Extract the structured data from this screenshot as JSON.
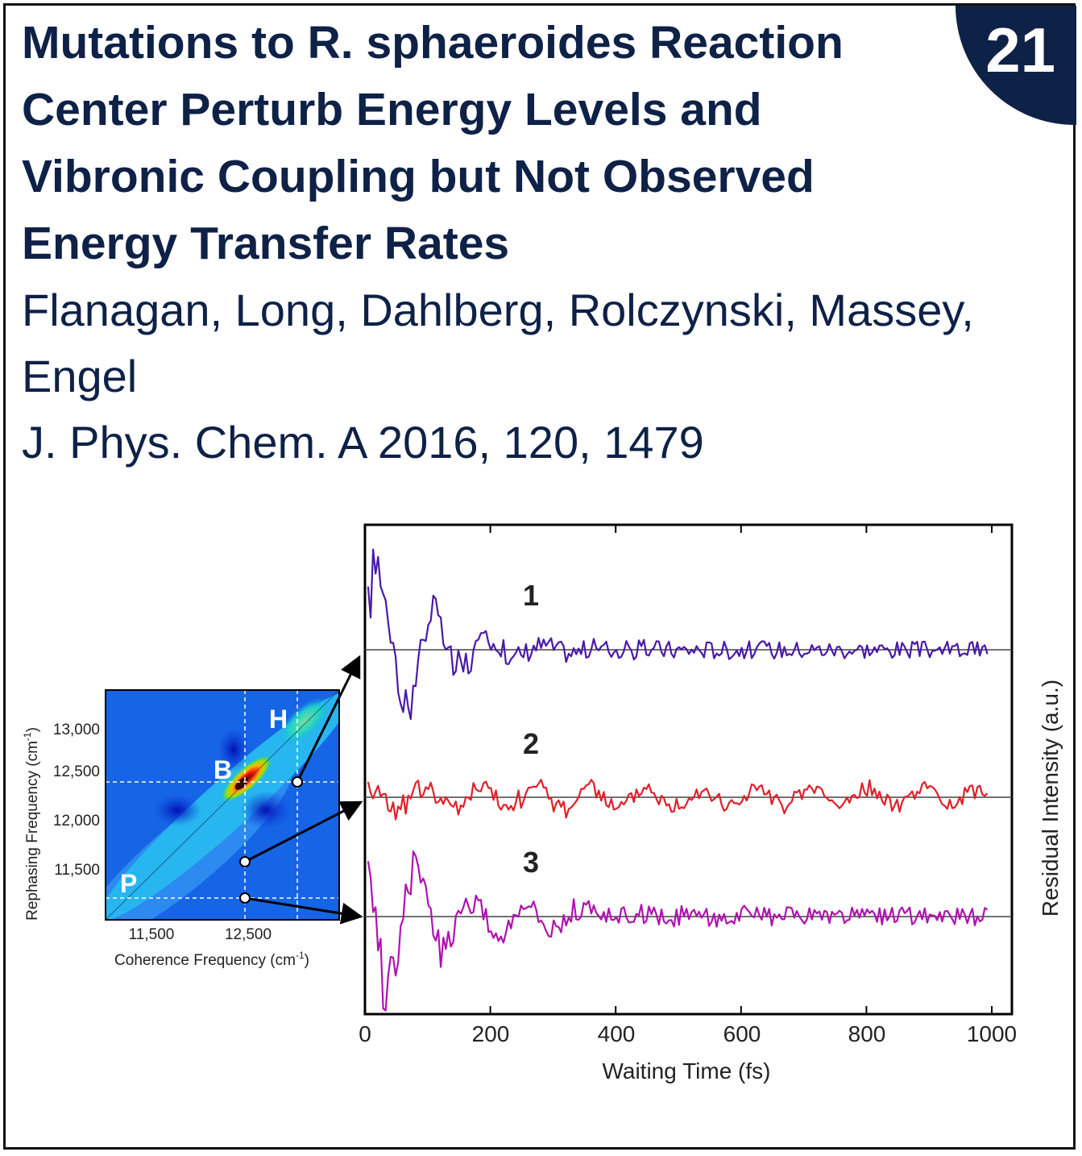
{
  "badge": {
    "number": "21"
  },
  "title": "Mutations to R. sphaeroides Reaction Center Perturb Energy Levels and Vibronic Coupling but Not Observed Energy Transfer Rates",
  "authors": "Flanagan, Long, Dahlberg, Rolczynski, Massey, Engel",
  "citation": "J. Phys. Chem. A 2016, 120, 1479",
  "colors": {
    "navy": "#0e2147",
    "trace1": "#4a1aa8",
    "trace2": "#e0202a",
    "trace3": "#b012b0"
  },
  "chart_data": [
    {
      "type": "heatmap",
      "xlabel_main": "Coherence Frequency (cm",
      "xlabel_sup": "-1",
      "xlabel_end": ")",
      "ylabel_main": "Rephasing Frequency (cm",
      "ylabel_sup": "-1",
      "ylabel_end": ")",
      "x_ticks": [
        "11,500",
        "12,500"
      ],
      "y_ticks": [
        "13,000",
        "12,500",
        "12,000",
        "11,500"
      ],
      "peak_labels": [
        "B",
        "H",
        "P"
      ],
      "marked_points": [
        {
          "coherence": 12500,
          "rephasing": 11250
        },
        {
          "coherence": 12500,
          "rephasing": 11600
        },
        {
          "coherence": 13000,
          "rephasing": 12450
        }
      ]
    },
    {
      "type": "line",
      "xlabel": "Waiting Time (fs)",
      "ylabel": "Residual Intensity (a.u.)",
      "xlim": [
        0,
        1000
      ],
      "x_ticks": [
        "0",
        "200",
        "400",
        "600",
        "800",
        "1000"
      ],
      "series": [
        {
          "name": "1",
          "color": "#4a1aa8",
          "amplitude": 1.0,
          "decay_fs": 90,
          "noise": 0.12
        },
        {
          "name": "2",
          "color": "#e0202a",
          "amplitude": 0.25,
          "decay_fs": 2000,
          "noise": 0.25
        },
        {
          "name": "3",
          "color": "#b012b0",
          "amplitude": 0.85,
          "decay_fs": 140,
          "noise": 0.15
        }
      ]
    }
  ]
}
